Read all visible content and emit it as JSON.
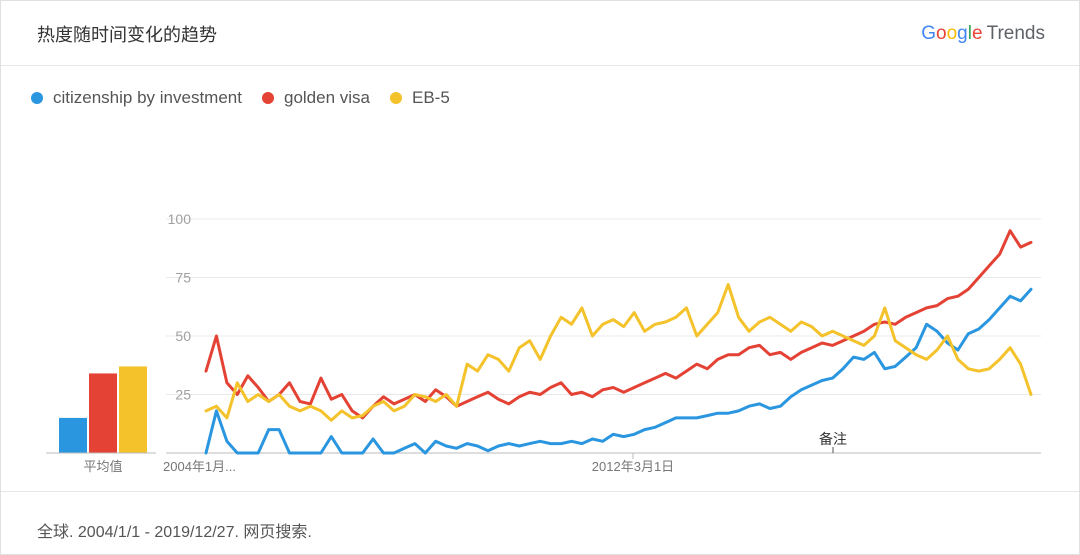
{
  "header": {
    "title": "热度随时间变化的趋势",
    "brand_google": "Google",
    "brand_trends": "Trends"
  },
  "legend": [
    {
      "name": "citizenship by investment",
      "color": "#2a96e0"
    },
    {
      "name": "golden visa",
      "color": "#e34234"
    },
    {
      "name": "EB-5",
      "color": "#f4c22b"
    }
  ],
  "averages_label": "平均值",
  "note_label": "备注",
  "footer": {
    "text": "全球. 2004/1/1 - 2019/12/27. 网页搜索."
  },
  "chart_data": {
    "type": "line",
    "x_tick_labels": [
      "2004年1月...",
      "2012年3月1日"
    ],
    "y_ticks": [
      25,
      50,
      75,
      100
    ],
    "ylim": [
      0,
      100
    ],
    "grid": true,
    "legend_position": "top-left",
    "averages": [
      {
        "name": "citizenship by investment",
        "value": 15
      },
      {
        "name": "golden visa",
        "value": 34
      },
      {
        "name": "EB-5",
        "value": 37
      }
    ],
    "series": [
      {
        "name": "citizenship by investment",
        "color": "#2a96e0",
        "values": [
          0,
          18,
          5,
          0,
          0,
          0,
          10,
          10,
          0,
          0,
          0,
          0,
          7,
          0,
          0,
          0,
          6,
          0,
          0,
          2,
          4,
          0,
          5,
          3,
          2,
          4,
          3,
          1,
          3,
          4,
          3,
          4,
          5,
          4,
          4,
          5,
          4,
          6,
          5,
          8,
          7,
          8,
          10,
          11,
          13,
          15,
          15,
          15,
          16,
          17,
          17,
          18,
          20,
          21,
          19,
          20,
          24,
          27,
          29,
          31,
          32,
          36,
          41,
          40,
          43,
          36,
          37,
          41,
          45,
          55,
          52,
          47,
          44,
          51,
          53,
          57,
          62,
          67,
          65,
          70
        ]
      },
      {
        "name": "golden visa",
        "color": "#e34234",
        "values": [
          35,
          50,
          30,
          25,
          33,
          28,
          22,
          25,
          30,
          22,
          21,
          32,
          23,
          25,
          18,
          15,
          20,
          24,
          21,
          23,
          25,
          22,
          27,
          24,
          20,
          22,
          24,
          26,
          23,
          21,
          24,
          26,
          25,
          28,
          30,
          25,
          26,
          24,
          27,
          28,
          26,
          28,
          30,
          32,
          34,
          32,
          35,
          38,
          36,
          40,
          42,
          42,
          45,
          46,
          42,
          43,
          40,
          43,
          45,
          47,
          46,
          48,
          50,
          52,
          55,
          56,
          55,
          58,
          60,
          62,
          63,
          66,
          67,
          70,
          75,
          80,
          85,
          95,
          88,
          90
        ]
      },
      {
        "name": "EB-5",
        "color": "#f4c22b",
        "values": [
          18,
          20,
          15,
          30,
          22,
          25,
          22,
          25,
          20,
          18,
          20,
          18,
          14,
          18,
          15,
          16,
          20,
          22,
          18,
          20,
          25,
          24,
          22,
          25,
          20,
          38,
          35,
          42,
          40,
          35,
          45,
          48,
          40,
          50,
          58,
          55,
          62,
          50,
          55,
          57,
          54,
          60,
          52,
          55,
          56,
          58,
          62,
          50,
          55,
          60,
          72,
          58,
          52,
          56,
          58,
          55,
          52,
          56,
          54,
          50,
          52,
          50,
          48,
          46,
          50,
          62,
          48,
          45,
          42,
          40,
          44,
          50,
          40,
          36,
          35,
          36,
          40,
          45,
          38,
          25
        ]
      }
    ]
  }
}
